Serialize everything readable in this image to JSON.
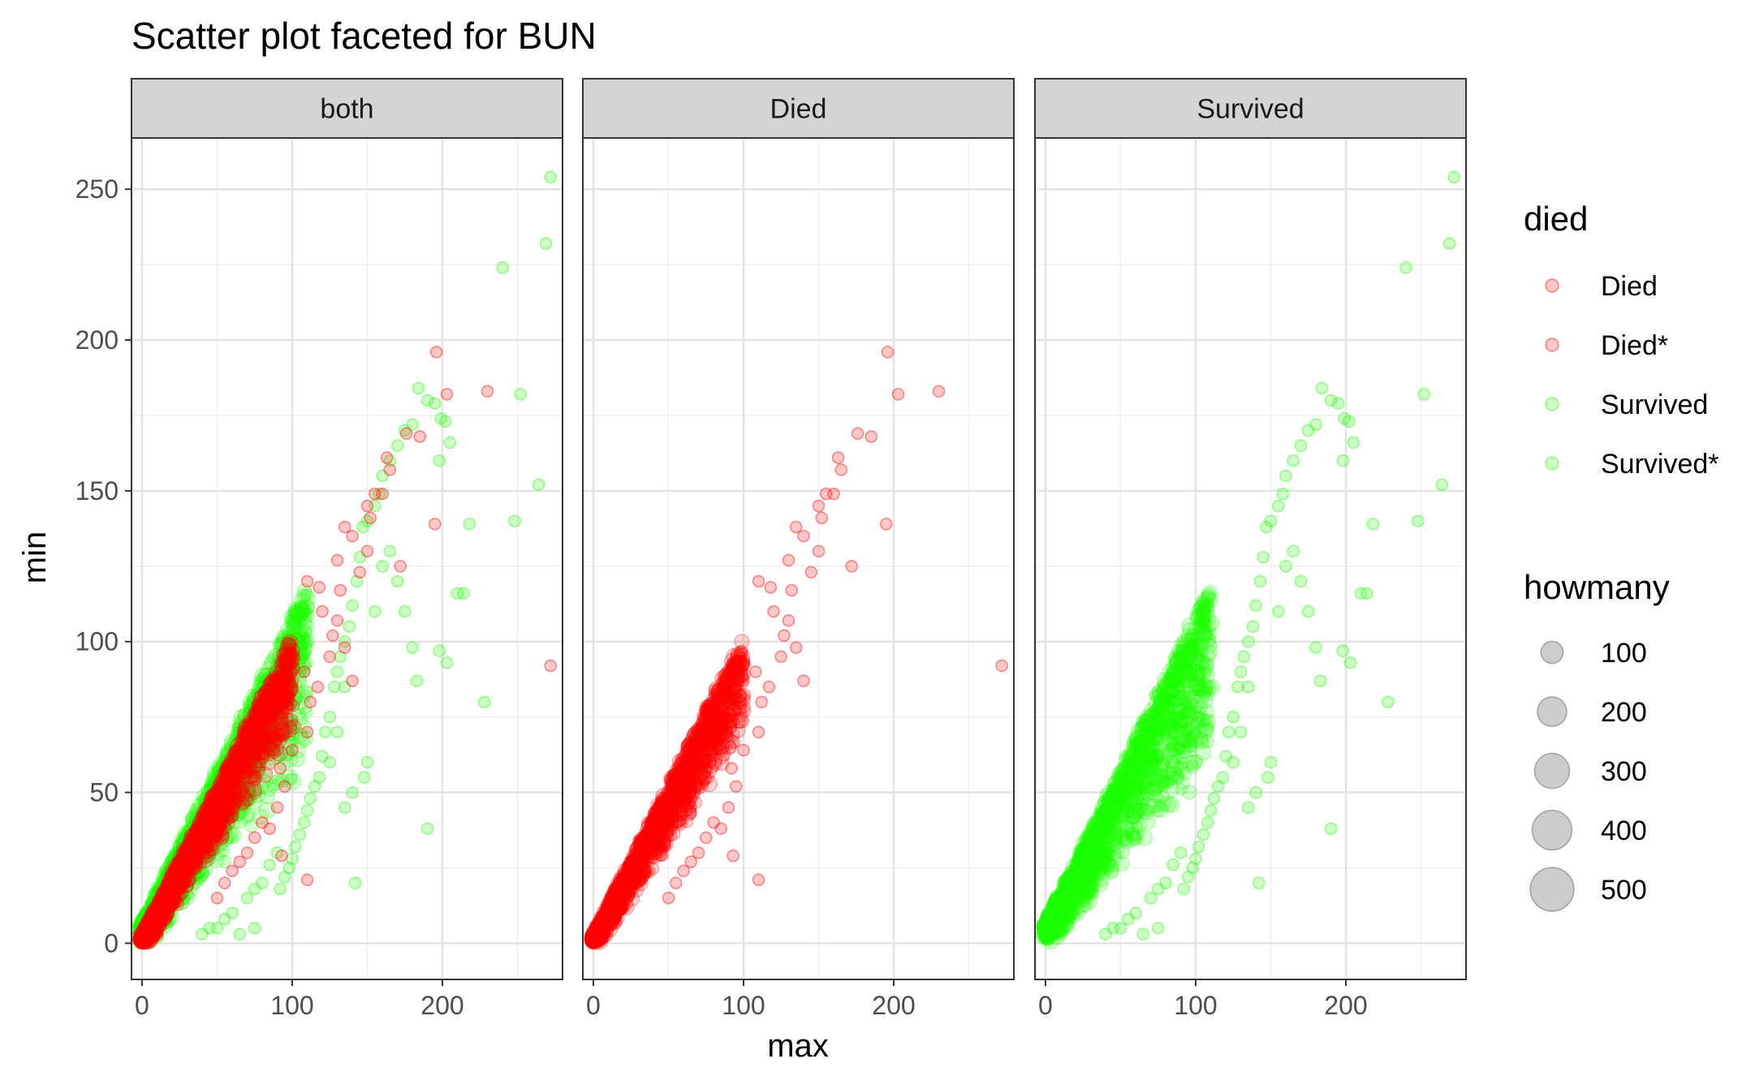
{
  "chart_data": {
    "type": "scatter",
    "title": "Scatter plot faceted for BUN",
    "xlabel": "max",
    "ylabel": "min",
    "xlim": [
      -7,
      280
    ],
    "ylim": [
      -12,
      267
    ],
    "x_ticks": [
      0,
      100,
      200
    ],
    "y_ticks": [
      0,
      50,
      100,
      150,
      200,
      250
    ],
    "grid": true,
    "facets": [
      {
        "label": "both",
        "show": [
          "Survived",
          "Died"
        ]
      },
      {
        "label": "Died",
        "show": [
          "Died"
        ]
      },
      {
        "label": "Survived",
        "show": [
          "Survived"
        ]
      }
    ],
    "series": [
      {
        "name": "Died",
        "color": "#ff0000",
        "band": {
          "xmax": 100,
          "slope_top": 0.99,
          "slope_bottom": 0.7,
          "intercept": 2
        },
        "points": [
          [
            196,
            196
          ],
          [
            203,
            182
          ],
          [
            230,
            183
          ],
          [
            272,
            92
          ],
          [
            176,
            169
          ],
          [
            185,
            168
          ],
          [
            195,
            139
          ],
          [
            172,
            125
          ],
          [
            163,
            161
          ],
          [
            165,
            157
          ],
          [
            160,
            149
          ],
          [
            155,
            149
          ],
          [
            152,
            141
          ],
          [
            150,
            130
          ],
          [
            145,
            123
          ],
          [
            140,
            135
          ],
          [
            135,
            138
          ],
          [
            132,
            117
          ],
          [
            130,
            107
          ],
          [
            127,
            102
          ],
          [
            120,
            110
          ],
          [
            125,
            95
          ],
          [
            140,
            87
          ],
          [
            135,
            98
          ],
          [
            117,
            85
          ],
          [
            112,
            80
          ],
          [
            110,
            70
          ],
          [
            100,
            64
          ],
          [
            95,
            52
          ],
          [
            92,
            58
          ],
          [
            90,
            45
          ],
          [
            85,
            38
          ],
          [
            80,
            40
          ],
          [
            93,
            29
          ],
          [
            110,
            21
          ],
          [
            75,
            35
          ],
          [
            70,
            30
          ],
          [
            65,
            27
          ],
          [
            60,
            24
          ],
          [
            55,
            20
          ],
          [
            50,
            15
          ],
          [
            110,
            120
          ],
          [
            130,
            127
          ],
          [
            150,
            145
          ],
          [
            118,
            118
          ],
          [
            108,
            90
          ],
          [
            98,
            82
          ],
          [
            88,
            72
          ],
          [
            78,
            60
          ],
          [
            68,
            52
          ],
          [
            62,
            48
          ],
          [
            55,
            45
          ],
          [
            48,
            40
          ],
          [
            42,
            36
          ],
          [
            36,
            30
          ]
        ]
      },
      {
        "name": "Survived",
        "color": "#1aff00",
        "band": {
          "xmax": 110,
          "slope_top": 1.02,
          "slope_bottom": 0.55,
          "intercept": 6
        },
        "points": [
          [
            272,
            254
          ],
          [
            269,
            232
          ],
          [
            240,
            224
          ],
          [
            252,
            182
          ],
          [
            264,
            152
          ],
          [
            248,
            140
          ],
          [
            228,
            80
          ],
          [
            218,
            139
          ],
          [
            214,
            116
          ],
          [
            210,
            116
          ],
          [
            205,
            166
          ],
          [
            202,
            173
          ],
          [
            199,
            174
          ],
          [
            198,
            160
          ],
          [
            195,
            179
          ],
          [
            190,
            180
          ],
          [
            184,
            184
          ],
          [
            180,
            172
          ],
          [
            175,
            170
          ],
          [
            170,
            165
          ],
          [
            165,
            160
          ],
          [
            160,
            155
          ],
          [
            158,
            149
          ],
          [
            155,
            145
          ],
          [
            150,
            140
          ],
          [
            147,
            138
          ],
          [
            145,
            128
          ],
          [
            143,
            120
          ],
          [
            140,
            112
          ],
          [
            138,
            105
          ],
          [
            135,
            100
          ],
          [
            132,
            95
          ],
          [
            130,
            90
          ],
          [
            128,
            85
          ],
          [
            125,
            75
          ],
          [
            122,
            70
          ],
          [
            120,
            62
          ],
          [
            118,
            55
          ],
          [
            115,
            52
          ],
          [
            112,
            48
          ],
          [
            110,
            44
          ],
          [
            108,
            40
          ],
          [
            105,
            36
          ],
          [
            102,
            32
          ],
          [
            100,
            28
          ],
          [
            98,
            25
          ],
          [
            95,
            22
          ],
          [
            92,
            18
          ],
          [
            150,
            60
          ],
          [
            148,
            55
          ],
          [
            140,
            50
          ],
          [
            135,
            45
          ],
          [
            142,
            20
          ],
          [
            183,
            87
          ],
          [
            190,
            38
          ],
          [
            198,
            97
          ],
          [
            203,
            93
          ],
          [
            180,
            98
          ],
          [
            175,
            110
          ],
          [
            170,
            120
          ],
          [
            165,
            130
          ],
          [
            160,
            125
          ],
          [
            155,
            110
          ],
          [
            135,
            85
          ],
          [
            130,
            70
          ],
          [
            125,
            60
          ],
          [
            90,
            30
          ],
          [
            85,
            26
          ],
          [
            80,
            20
          ],
          [
            75,
            18
          ],
          [
            70,
            15
          ],
          [
            60,
            10
          ],
          [
            55,
            8
          ],
          [
            50,
            5
          ],
          [
            45,
            5
          ],
          [
            40,
            3
          ],
          [
            75,
            5
          ],
          [
            65,
            3
          ]
        ]
      }
    ],
    "legend": {
      "died": {
        "title": "died",
        "entries": [
          {
            "label": "Died",
            "color": "#ff0000"
          },
          {
            "label": "Died*",
            "color": "#ff0000"
          },
          {
            "label": "Survived",
            "color": "#1aff00"
          },
          {
            "label": "Survived*",
            "color": "#1aff00"
          }
        ]
      },
      "howmany": {
        "title": "howmany",
        "entries": [
          {
            "label": "100",
            "value": 100
          },
          {
            "label": "200",
            "value": 200
          },
          {
            "label": "300",
            "value": 300
          },
          {
            "label": "400",
            "value": 400
          },
          {
            "label": "500",
            "value": 500
          }
        ]
      }
    }
  }
}
